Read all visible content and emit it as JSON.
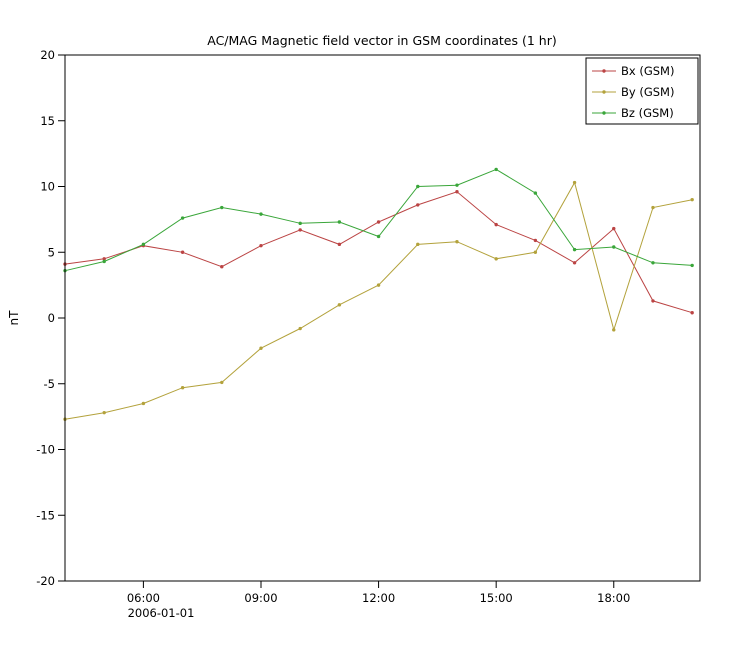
{
  "chart_data": {
    "type": "line",
    "title": "AC/MAG  Magnetic field vector in GSM coordinates (1 hr)",
    "ylabel": "nT",
    "x_date": "2006-01-01",
    "xlim": [
      4,
      20.2
    ],
    "ylim": [
      -20,
      20
    ],
    "ytick_step": 5,
    "grid": false,
    "legend_position": "top-right",
    "x_ticks": [
      {
        "hour": 6,
        "label": "06:00"
      },
      {
        "hour": 9,
        "label": "09:00"
      },
      {
        "hour": 12,
        "label": "12:00"
      },
      {
        "hour": 15,
        "label": "15:00"
      },
      {
        "hour": 18,
        "label": "18:00"
      }
    ],
    "x_hours": [
      4,
      5,
      6,
      7,
      8,
      9,
      10,
      11,
      12,
      13,
      14,
      15,
      16,
      17,
      18,
      19,
      20
    ],
    "series": [
      {
        "name": "Bx (GSM)",
        "color": "#bb4444",
        "values": [
          4.1,
          4.5,
          5.5,
          5.0,
          3.9,
          5.5,
          6.7,
          5.6,
          7.3,
          8.6,
          9.6,
          7.1,
          5.9,
          4.2,
          6.8,
          1.3,
          0.4
        ]
      },
      {
        "name": "By (GSM)",
        "color": "#b3a23c",
        "values": [
          -7.7,
          -7.2,
          -6.5,
          -5.3,
          -4.9,
          -2.3,
          -0.8,
          1.0,
          2.5,
          5.6,
          5.8,
          4.5,
          5.0,
          10.3,
          -0.9,
          8.4,
          9.0
        ]
      },
      {
        "name": "Bz (GSM)",
        "color": "#3aa63a",
        "values": [
          3.6,
          4.3,
          5.6,
          7.6,
          8.4,
          7.9,
          7.2,
          7.3,
          6.2,
          10.0,
          10.1,
          11.3,
          9.5,
          5.2,
          5.4,
          4.2,
          4.0
        ]
      }
    ]
  }
}
